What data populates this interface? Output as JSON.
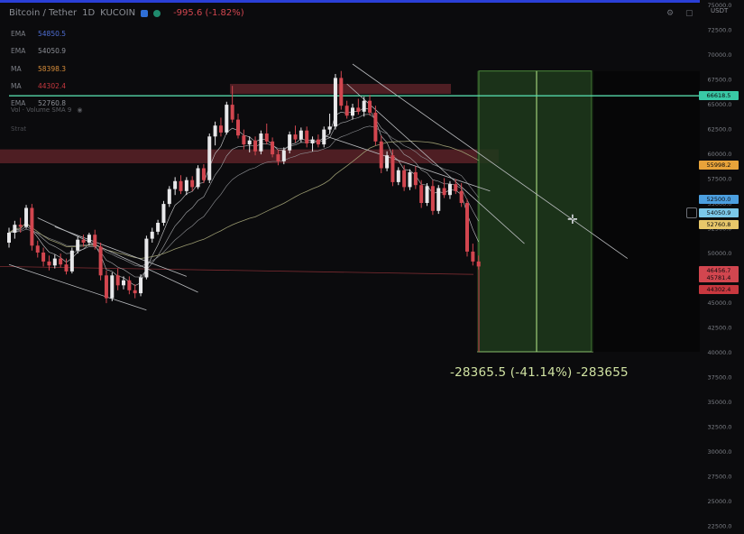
{
  "header": {
    "symbol": "Bitcoin / Tether",
    "interval": "1D",
    "exchange": "KUCOIN",
    "change": "-995.6 (-1.82%)",
    "unit": "USDT"
  },
  "indicators": [
    {
      "name": "EMA",
      "value": "54850.5",
      "color": "#4f6fd6"
    },
    {
      "name": "EMA",
      "value": "54050.9",
      "color": "#8c8f96"
    },
    {
      "name": "MA",
      "value": "58398.3",
      "color": "#d98e3a"
    },
    {
      "name": "MA",
      "value": "44302.4",
      "color": "#c8383f"
    },
    {
      "name": "EMA",
      "value": "52760.8",
      "color": "#8c8f96"
    }
  ],
  "hint_text": "Vol · Volume  SMA 9",
  "hint_text2": "Strat",
  "annotation": "-28365.5 (-41.14%) -283655",
  "price_tags": [
    {
      "value": "66618.5",
      "color": "#39c9a6",
      "price": 65800
    },
    {
      "value": "55998.2",
      "color": "#e8a33a",
      "price": 58800
    },
    {
      "value": "52500.0",
      "color": "#4c9fe0",
      "price": 55400
    },
    {
      "value": "54050.9",
      "color": "#7bc7e8",
      "price": 54000
    },
    {
      "value": "52760.8",
      "color": "#e8c76a",
      "price": 52800
    },
    {
      "value": "46456.7",
      "color": "#d2464f",
      "price": 48200
    },
    {
      "value": "45781.4",
      "color": "#d2464f",
      "price": 47500
    },
    {
      "value": "44302.4",
      "color": "#c8383f",
      "price": 46300
    }
  ],
  "colors": {
    "background": "#0b0b0d",
    "up": "#e8e8ea",
    "down": "#d2464f",
    "long_zone": "#1f3a1c",
    "price_line": "#55d6a8",
    "resistance_zone": "#5a2228"
  },
  "chart_data": {
    "type": "candlestick",
    "title": "",
    "xlabel": "",
    "ylabel": "",
    "ylim": [
      22500,
      79000
    ],
    "yticks": [
      77500,
      75000,
      72500,
      70000,
      67500,
      65000,
      62500,
      60000,
      57500,
      55000,
      52500,
      50000,
      47500,
      45000,
      42500,
      40000,
      37500,
      35000,
      32500,
      30000,
      27500,
      25000,
      22500
    ],
    "horizontal_line": 65800,
    "zones": [
      {
        "type": "resistance",
        "from": 66000,
        "to": 67000
      },
      {
        "type": "resistance",
        "from": 59000,
        "to": 60400
      }
    ],
    "projection": {
      "from": 68300,
      "to": 40000,
      "change": "-28365.5",
      "percent": "-41.14%"
    },
    "candles": [
      [
        51000,
        52500,
        50500,
        52000
      ],
      [
        52000,
        53200,
        51400,
        52800
      ],
      [
        52800,
        53500,
        52000,
        52600
      ],
      [
        52600,
        54800,
        52400,
        54500
      ],
      [
        54500,
        54900,
        50200,
        50700
      ],
      [
        50700,
        51200,
        49500,
        50000
      ],
      [
        50000,
        50500,
        48600,
        49100
      ],
      [
        49100,
        49700,
        48200,
        48700
      ],
      [
        48700,
        49800,
        48400,
        49400
      ],
      [
        49400,
        49900,
        48500,
        48800
      ],
      [
        48800,
        49400,
        47800,
        48100
      ],
      [
        48100,
        50500,
        47900,
        50200
      ],
      [
        50200,
        51600,
        49900,
        51300
      ],
      [
        51300,
        51800,
        50600,
        51000
      ],
      [
        51000,
        52000,
        50700,
        51800
      ],
      [
        51800,
        52300,
        50300,
        50600
      ],
      [
        50600,
        51000,
        47200,
        47700
      ],
      [
        47700,
        48200,
        44900,
        45400
      ],
      [
        45400,
        48000,
        45100,
        47700
      ],
      [
        47700,
        48400,
        46200,
        46700
      ],
      [
        46700,
        47600,
        46300,
        47200
      ],
      [
        47200,
        47600,
        45800,
        46200
      ],
      [
        46200,
        46800,
        45400,
        45900
      ],
      [
        45900,
        47800,
        45600,
        47500
      ],
      [
        47500,
        51700,
        47300,
        51400
      ],
      [
        51400,
        52500,
        51000,
        52100
      ],
      [
        52100,
        53300,
        51800,
        53000
      ],
      [
        53000,
        55200,
        52700,
        54900
      ],
      [
        54900,
        56700,
        54600,
        56400
      ],
      [
        56400,
        57600,
        55800,
        57200
      ],
      [
        57200,
        57800,
        55900,
        56200
      ],
      [
        56200,
        57600,
        55800,
        57300
      ],
      [
        57300,
        57700,
        56200,
        56600
      ],
      [
        56600,
        58800,
        56400,
        58500
      ],
      [
        58500,
        58900,
        57000,
        57300
      ],
      [
        57300,
        62000,
        57000,
        61700
      ],
      [
        61700,
        63200,
        60800,
        62800
      ],
      [
        62800,
        63600,
        61700,
        62100
      ],
      [
        62100,
        65200,
        61900,
        64900
      ],
      [
        64900,
        66800,
        63100,
        63400
      ],
      [
        63400,
        64000,
        61500,
        61800
      ],
      [
        61800,
        62400,
        60400,
        60900
      ],
      [
        60900,
        61700,
        60100,
        61300
      ],
      [
        61300,
        61700,
        59800,
        60200
      ],
      [
        60200,
        62300,
        59900,
        62000
      ],
      [
        62000,
        63000,
        60900,
        61200
      ],
      [
        61200,
        61600,
        59600,
        59900
      ],
      [
        59900,
        60400,
        58800,
        59200
      ],
      [
        59200,
        60600,
        58900,
        60300
      ],
      [
        60300,
        62200,
        60000,
        61900
      ],
      [
        61900,
        62800,
        61100,
        61400
      ],
      [
        61400,
        62600,
        61100,
        62300
      ],
      [
        62300,
        62700,
        60600,
        61000
      ],
      [
        61000,
        61700,
        60200,
        61400
      ],
      [
        61400,
        61900,
        60600,
        60900
      ],
      [
        60900,
        62700,
        60600,
        62400
      ],
      [
        62400,
        64000,
        62000,
        62700
      ],
      [
        62700,
        68000,
        62400,
        67600
      ],
      [
        67600,
        68300,
        64400,
        64800
      ],
      [
        64800,
        65300,
        63500,
        63800
      ],
      [
        63800,
        65000,
        63400,
        64600
      ],
      [
        64600,
        65500,
        63900,
        64200
      ],
      [
        64200,
        65700,
        63700,
        65300
      ],
      [
        65300,
        65900,
        63800,
        64100
      ],
      [
        64100,
        64800,
        60800,
        61200
      ],
      [
        61200,
        61800,
        58000,
        58500
      ],
      [
        58500,
        60200,
        58200,
        59800
      ],
      [
        59800,
        60400,
        56700,
        57100
      ],
      [
        57100,
        58600,
        56800,
        58300
      ],
      [
        58300,
        58800,
        56200,
        56600
      ],
      [
        56600,
        58400,
        56300,
        58100
      ],
      [
        58100,
        58700,
        56400,
        56800
      ],
      [
        56800,
        57300,
        54500,
        55000
      ],
      [
        55000,
        57000,
        54700,
        56700
      ],
      [
        56700,
        57300,
        53800,
        54200
      ],
      [
        54200,
        56800,
        53900,
        56500
      ],
      [
        56500,
        57500,
        55500,
        55800
      ],
      [
        55800,
        57200,
        55400,
        56900
      ],
      [
        56900,
        57400,
        55900,
        56200
      ],
      [
        56200,
        57000,
        54600,
        55000
      ],
      [
        55000,
        55400,
        49600,
        50100
      ],
      [
        50100,
        50900,
        48700,
        49100
      ],
      [
        49100,
        49700,
        48300,
        48600
      ]
    ]
  }
}
